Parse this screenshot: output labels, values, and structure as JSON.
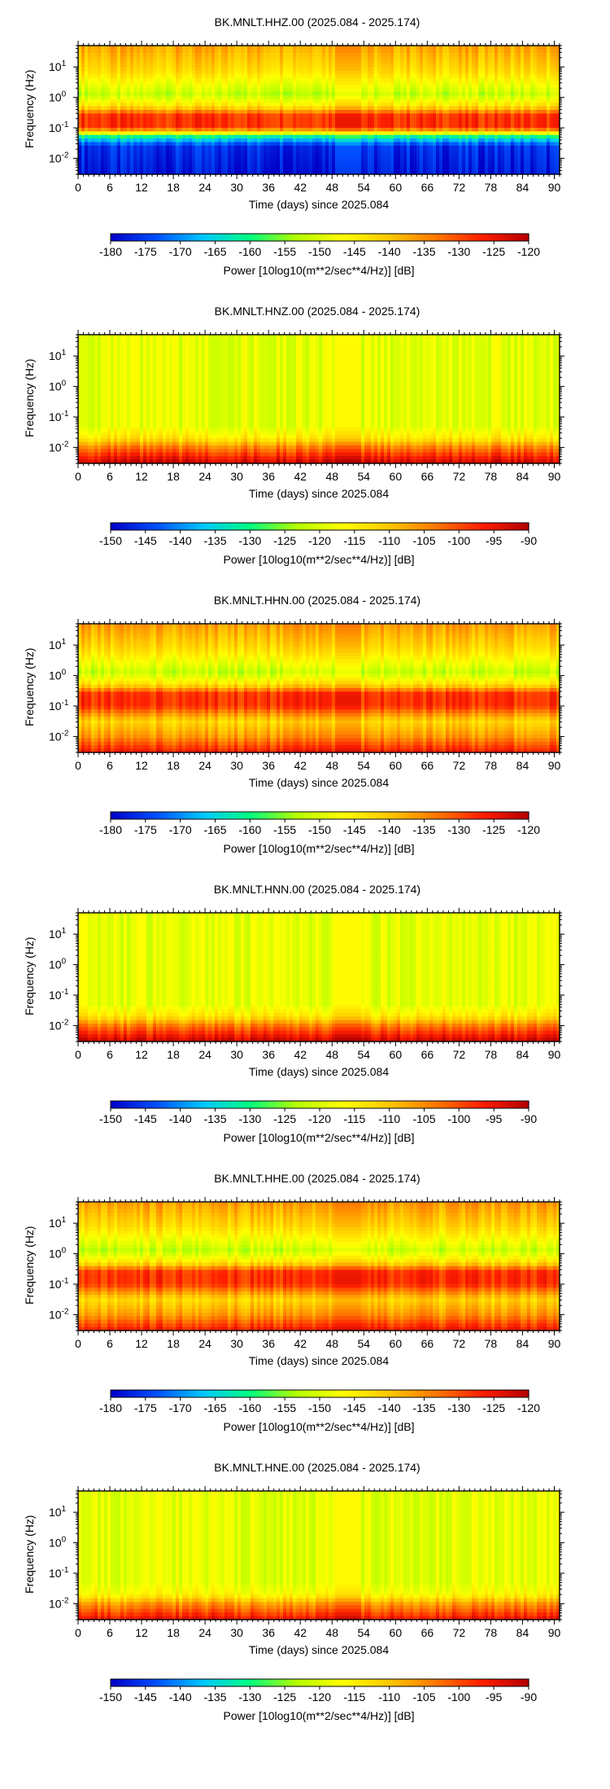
{
  "colormap": [
    "#0000c8",
    "#0050ff",
    "#00c8ff",
    "#00ff80",
    "#b4ff00",
    "#ffff00",
    "#ffc800",
    "#ff7800",
    "#ff1e00",
    "#b40000"
  ],
  "chart_data": [
    {
      "type": "heatmap",
      "title": "BK.MNLT.HHZ.00 (2025.084 - 2025.174)",
      "xlabel": "Time (days) since 2025.084",
      "ylabel": "Frequency (Hz)",
      "xlim": [
        0,
        91
      ],
      "xticks": [
        "0",
        "6",
        "12",
        "18",
        "24",
        "30",
        "36",
        "42",
        "48",
        "54",
        "60",
        "66",
        "72",
        "78",
        "84",
        "90"
      ],
      "yscale": "log",
      "ylim": [
        0.003,
        50
      ],
      "yticks": [
        "10^-2",
        "10^-1",
        "10^0",
        "10^1"
      ],
      "colorbar_label": "Power [10log10(m**2/sec**4/Hz)] [dB]",
      "colorbar_range": [
        -180,
        -120
      ],
      "colorbar_ticks": [
        "-180",
        "-175",
        "-170",
        "-165",
        "-160",
        "-155",
        "-150",
        "-145",
        "-140",
        "-135",
        "-130",
        "-125",
        "-120"
      ],
      "profile": [
        {
          "logf": -2.5,
          "db": -178
        },
        {
          "logf": -1.6,
          "db": -176
        },
        {
          "logf": -1.3,
          "db": -162
        },
        {
          "logf": -1.0,
          "db": -128
        },
        {
          "logf": -0.6,
          "db": -128
        },
        {
          "logf": -0.3,
          "db": -143
        },
        {
          "logf": 0.1,
          "db": -152
        },
        {
          "logf": 0.5,
          "db": -147
        },
        {
          "logf": 0.9,
          "db": -142
        },
        {
          "logf": 1.7,
          "db": -137
        }
      ],
      "gaps": [
        [
          48.5,
          53.5
        ]
      ]
    },
    {
      "type": "heatmap",
      "title": "BK.MNLT.HNZ.00 (2025.084 - 2025.174)",
      "xlabel": "Time (days) since 2025.084",
      "ylabel": "Frequency (Hz)",
      "xlim": [
        0,
        91
      ],
      "xticks": [
        "0",
        "6",
        "12",
        "18",
        "24",
        "30",
        "36",
        "42",
        "48",
        "54",
        "60",
        "66",
        "72",
        "78",
        "84",
        "90"
      ],
      "yscale": "log",
      "ylim": [
        0.003,
        50
      ],
      "yticks": [
        "10^-2",
        "10^-1",
        "10^0",
        "10^1"
      ],
      "colorbar_label": "Power [10log10(m**2/sec**4/Hz)] [dB]",
      "colorbar_range": [
        -150,
        -90
      ],
      "colorbar_ticks": [
        "-150",
        "-145",
        "-140",
        "-135",
        "-130",
        "-125",
        "-120",
        "-115",
        "-110",
        "-105",
        "-100",
        "-95",
        "-90"
      ],
      "profile": [
        {
          "logf": -2.5,
          "db": -92
        },
        {
          "logf": -2.0,
          "db": -104
        },
        {
          "logf": -1.7,
          "db": -114
        },
        {
          "logf": -1.3,
          "db": -119
        },
        {
          "logf": 1.7,
          "db": -119
        }
      ],
      "gaps": [
        [
          48.5,
          53.5
        ]
      ]
    },
    {
      "type": "heatmap",
      "title": "BK.MNLT.HHN.00 (2025.084 - 2025.174)",
      "xlabel": "Time (days) since 2025.084",
      "ylabel": "Frequency (Hz)",
      "xlim": [
        0,
        91
      ],
      "xticks": [
        "0",
        "6",
        "12",
        "18",
        "24",
        "30",
        "36",
        "42",
        "48",
        "54",
        "60",
        "66",
        "72",
        "78",
        "84",
        "90"
      ],
      "yscale": "log",
      "ylim": [
        0.003,
        50
      ],
      "yticks": [
        "10^-2",
        "10^-1",
        "10^0",
        "10^1"
      ],
      "colorbar_label": "Power [10log10(m**2/sec**4/Hz)] [dB]",
      "colorbar_range": [
        -180,
        -120
      ],
      "colorbar_ticks": [
        "-180",
        "-175",
        "-170",
        "-165",
        "-160",
        "-155",
        "-150",
        "-145",
        "-140",
        "-135",
        "-130",
        "-125",
        "-120"
      ],
      "profile": [
        {
          "logf": -2.5,
          "db": -126
        },
        {
          "logf": -2.0,
          "db": -136
        },
        {
          "logf": -1.5,
          "db": -142
        },
        {
          "logf": -1.0,
          "db": -128
        },
        {
          "logf": -0.6,
          "db": -128
        },
        {
          "logf": -0.3,
          "db": -143
        },
        {
          "logf": 0.1,
          "db": -152
        },
        {
          "logf": 0.5,
          "db": -147
        },
        {
          "logf": 0.9,
          "db": -142
        },
        {
          "logf": 1.7,
          "db": -136
        }
      ],
      "gaps": [
        [
          48.5,
          53.5
        ]
      ]
    },
    {
      "type": "heatmap",
      "title": "BK.MNLT.HNN.00 (2025.084 - 2025.174)",
      "xlabel": "Time (days) since 2025.084",
      "ylabel": "Frequency (Hz)",
      "xlim": [
        0,
        91
      ],
      "xticks": [
        "0",
        "6",
        "12",
        "18",
        "24",
        "30",
        "36",
        "42",
        "48",
        "54",
        "60",
        "66",
        "72",
        "78",
        "84",
        "90"
      ],
      "yscale": "log",
      "ylim": [
        0.003,
        50
      ],
      "yticks": [
        "10^-2",
        "10^-1",
        "10^0",
        "10^1"
      ],
      "colorbar_label": "Power [10log10(m**2/sec**4/Hz)] [dB]",
      "colorbar_range": [
        -150,
        -90
      ],
      "colorbar_ticks": [
        "-150",
        "-145",
        "-140",
        "-135",
        "-130",
        "-125",
        "-120",
        "-115",
        "-110",
        "-105",
        "-100",
        "-95",
        "-90"
      ],
      "profile": [
        {
          "logf": -2.5,
          "db": -92
        },
        {
          "logf": -2.0,
          "db": -104
        },
        {
          "logf": -1.7,
          "db": -114
        },
        {
          "logf": -1.3,
          "db": -119
        },
        {
          "logf": 1.7,
          "db": -119
        }
      ],
      "gaps": [
        [
          48.5,
          53.5
        ]
      ]
    },
    {
      "type": "heatmap",
      "title": "BK.MNLT.HHE.00 (2025.084 - 2025.174)",
      "xlabel": "Time (days) since 2025.084",
      "ylabel": "Frequency (Hz)",
      "xlim": [
        0,
        91
      ],
      "xticks": [
        "0",
        "6",
        "12",
        "18",
        "24",
        "30",
        "36",
        "42",
        "48",
        "54",
        "60",
        "66",
        "72",
        "78",
        "84",
        "90"
      ],
      "yscale": "log",
      "ylim": [
        0.003,
        50
      ],
      "yticks": [
        "10^-2",
        "10^-1",
        "10^0",
        "10^1"
      ],
      "colorbar_label": "Power [10log10(m**2/sec**4/Hz)] [dB]",
      "colorbar_range": [
        -180,
        -120
      ],
      "colorbar_ticks": [
        "-180",
        "-175",
        "-170",
        "-165",
        "-160",
        "-155",
        "-150",
        "-145",
        "-140",
        "-135",
        "-130",
        "-125",
        "-120"
      ],
      "profile": [
        {
          "logf": -2.5,
          "db": -126
        },
        {
          "logf": -2.0,
          "db": -136
        },
        {
          "logf": -1.5,
          "db": -142
        },
        {
          "logf": -1.0,
          "db": -128
        },
        {
          "logf": -0.6,
          "db": -128
        },
        {
          "logf": -0.3,
          "db": -143
        },
        {
          "logf": 0.1,
          "db": -152
        },
        {
          "logf": 0.5,
          "db": -147
        },
        {
          "logf": 0.9,
          "db": -142
        },
        {
          "logf": 1.7,
          "db": -136
        }
      ],
      "gaps": [
        [
          48.5,
          53.5
        ]
      ]
    },
    {
      "type": "heatmap",
      "title": "BK.MNLT.HNE.00 (2025.084 - 2025.174)",
      "xlabel": "Time (days) since 2025.084",
      "ylabel": "Frequency (Hz)",
      "xlim": [
        0,
        91
      ],
      "xticks": [
        "0",
        "6",
        "12",
        "18",
        "24",
        "30",
        "36",
        "42",
        "48",
        "54",
        "60",
        "66",
        "72",
        "78",
        "84",
        "90"
      ],
      "yscale": "log",
      "ylim": [
        0.003,
        50
      ],
      "yticks": [
        "10^-2",
        "10^-1",
        "10^0",
        "10^1"
      ],
      "colorbar_label": "Power [10log10(m**2/sec**4/Hz)] [dB]",
      "colorbar_range": [
        -150,
        -90
      ],
      "colorbar_ticks": [
        "-150",
        "-145",
        "-140",
        "-135",
        "-130",
        "-125",
        "-120",
        "-115",
        "-110",
        "-105",
        "-100",
        "-95",
        "-90"
      ],
      "profile": [
        {
          "logf": -2.5,
          "db": -95
        },
        {
          "logf": -2.0,
          "db": -106
        },
        {
          "logf": -1.7,
          "db": -116
        },
        {
          "logf": -1.3,
          "db": -119
        },
        {
          "logf": 1.7,
          "db": -119
        }
      ],
      "gaps": [
        [
          48.5,
          53.5
        ]
      ]
    }
  ]
}
